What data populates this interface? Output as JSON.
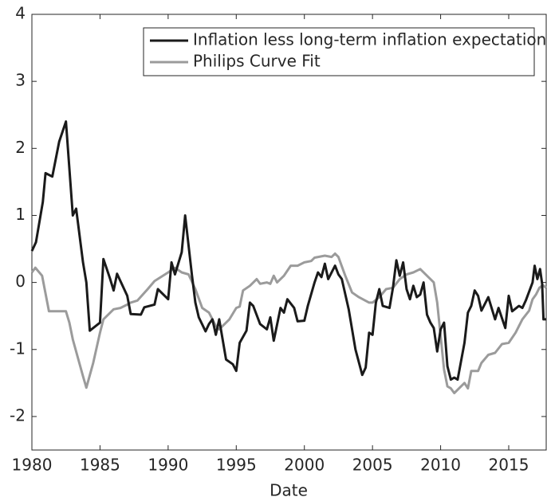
{
  "chart_data": {
    "type": "line",
    "xlabel": "Date",
    "xlim": [
      1980,
      2017.75
    ],
    "xticks": [
      1980,
      1985,
      1990,
      1995,
      2000,
      2005,
      2010,
      2015
    ],
    "ylim": [
      -2.5,
      4
    ],
    "yticks": [
      -2,
      -1,
      0,
      1,
      2,
      3,
      4
    ],
    "legend": "upper right",
    "series": [
      {
        "name": "Inflation less long-term inflation expectations",
        "color": "#1a1a1a",
        "x": [
          1980,
          1980.3,
          1980.8,
          1981,
          1981.5,
          1982,
          1982.5,
          1983,
          1983.25,
          1983.75,
          1984,
          1984.25,
          1985,
          1985.25,
          1985.75,
          1986,
          1986.25,
          1987,
          1987.25,
          1988,
          1988.25,
          1989,
          1989.25,
          1990,
          1990.25,
          1990.5,
          1991,
          1991.25,
          1991.75,
          1992,
          1992.25,
          1992.75,
          1993,
          1993.25,
          1993.5,
          1993.75,
          1994.25,
          1994.75,
          1995,
          1995.25,
          1995.75,
          1996,
          1996.25,
          1996.75,
          1997.25,
          1997.5,
          1997.75,
          1998.25,
          1998.5,
          1998.75,
          1999.25,
          1999.5,
          2000,
          2000.25,
          2000.75,
          2001,
          2001.25,
          2001.5,
          2001.75,
          2002.25,
          2002.5,
          2002.75,
          2003.25,
          2003.75,
          2004.25,
          2004.5,
          2004.75,
          2005,
          2005.25,
          2005.5,
          2005.75,
          2006.25,
          2006.5,
          2006.75,
          2007,
          2007.25,
          2007.5,
          2007.75,
          2008,
          2008.25,
          2008.5,
          2008.75,
          2009,
          2009.25,
          2009.5,
          2009.75,
          2010,
          2010.25,
          2010.5,
          2010.75,
          2011,
          2011.25,
          2011.75,
          2012,
          2012.25,
          2012.5,
          2012.75,
          2013,
          2013.5,
          2014,
          2014.25,
          2014.75,
          2015,
          2015.25,
          2015.75,
          2016,
          2016.25,
          2016.75,
          2016.9,
          2017.1,
          2017.3,
          2017.45,
          2017.55,
          2017.75
        ],
        "values": [
          0.47,
          0.6,
          1.2,
          1.63,
          1.58,
          2.1,
          2.4,
          1.0,
          1.1,
          0.3,
          0.0,
          -0.72,
          -0.6,
          0.35,
          0.05,
          -0.12,
          0.13,
          -0.2,
          -0.47,
          -0.48,
          -0.37,
          -0.33,
          -0.1,
          -0.25,
          0.3,
          0.12,
          0.45,
          1.0,
          0.1,
          -0.3,
          -0.52,
          -0.73,
          -0.62,
          -0.55,
          -0.78,
          -0.55,
          -1.15,
          -1.22,
          -1.32,
          -0.9,
          -0.72,
          -0.3,
          -0.35,
          -0.62,
          -0.7,
          -0.52,
          -0.87,
          -0.38,
          -0.45,
          -0.25,
          -0.38,
          -0.58,
          -0.57,
          -0.35,
          0.0,
          0.15,
          0.08,
          0.28,
          0.05,
          0.25,
          0.12,
          0.05,
          -0.4,
          -1.0,
          -1.38,
          -1.27,
          -0.75,
          -0.78,
          -0.3,
          -0.1,
          -0.35,
          -0.38,
          -0.08,
          0.33,
          0.1,
          0.3,
          -0.1,
          -0.25,
          -0.05,
          -0.22,
          -0.18,
          0.0,
          -0.48,
          -0.6,
          -0.68,
          -1.03,
          -0.7,
          -0.6,
          -1.25,
          -1.45,
          -1.42,
          -1.45,
          -0.9,
          -0.45,
          -0.35,
          -0.12,
          -0.2,
          -0.42,
          -0.22,
          -0.55,
          -0.38,
          -0.68,
          -0.2,
          -0.43,
          -0.35,
          -0.38,
          -0.27,
          0.0,
          0.25,
          0.05,
          0.2,
          -0.02,
          -0.55,
          -0.55
        ]
      },
      {
        "name": "Philips Curve Fit",
        "color": "#9b9b9b",
        "x": [
          1980,
          1980.25,
          1980.75,
          1981.25,
          1982.5,
          1982.75,
          1983,
          1983.75,
          1984,
          1984.5,
          1985,
          1985.25,
          1986,
          1986.5,
          1987,
          1987.25,
          1987.75,
          1988.5,
          1989,
          1990,
          1990.5,
          1991,
          1991.5,
          1992,
          1992.5,
          1993,
          1993.5,
          1993.75,
          1994.25,
          1994.5,
          1995,
          1995.25,
          1995.5,
          1996,
          1996.5,
          1996.75,
          1997.25,
          1997.5,
          1997.75,
          1998,
          1998.5,
          1999,
          1999.5,
          2000,
          2000.5,
          2000.75,
          2001.5,
          2002,
          2002.25,
          2002.5,
          2003,
          2003.5,
          2004,
          2004.75,
          2005,
          2005.5,
          2006,
          2006.5,
          2007,
          2007.5,
          2008,
          2008.5,
          2009,
          2009.5,
          2009.75,
          2010,
          2010.25,
          2010.5,
          2010.75,
          2011,
          2011.5,
          2011.75,
          2012,
          2012.25,
          2012.75,
          2013,
          2013.5,
          2014,
          2014.5,
          2015,
          2015.5,
          2016,
          2016.5,
          2016.75,
          2017,
          2017.25,
          2017.5,
          2017.75
        ],
        "values": [
          0.15,
          0.22,
          0.1,
          -0.43,
          -0.43,
          -0.6,
          -0.85,
          -1.4,
          -1.57,
          -1.2,
          -0.75,
          -0.55,
          -0.4,
          -0.38,
          -0.33,
          -0.3,
          -0.27,
          -0.1,
          0.02,
          0.15,
          0.22,
          0.15,
          0.12,
          -0.1,
          -0.38,
          -0.45,
          -0.65,
          -0.7,
          -0.6,
          -0.55,
          -0.38,
          -0.36,
          -0.12,
          -0.05,
          0.05,
          -0.02,
          0.0,
          -0.02,
          0.1,
          0.0,
          0.1,
          0.25,
          0.25,
          0.3,
          0.32,
          0.37,
          0.4,
          0.38,
          0.43,
          0.38,
          0.1,
          -0.15,
          -0.22,
          -0.3,
          -0.3,
          -0.22,
          -0.1,
          -0.08,
          0.05,
          0.12,
          0.15,
          0.2,
          0.1,
          0.0,
          -0.3,
          -0.8,
          -1.3,
          -1.55,
          -1.58,
          -1.65,
          -1.55,
          -1.5,
          -1.58,
          -1.32,
          -1.32,
          -1.2,
          -1.08,
          -1.05,
          -0.92,
          -0.9,
          -0.75,
          -0.55,
          -0.42,
          -0.25,
          -0.18,
          -0.08,
          -0.04,
          -0.08
        ]
      }
    ]
  }
}
